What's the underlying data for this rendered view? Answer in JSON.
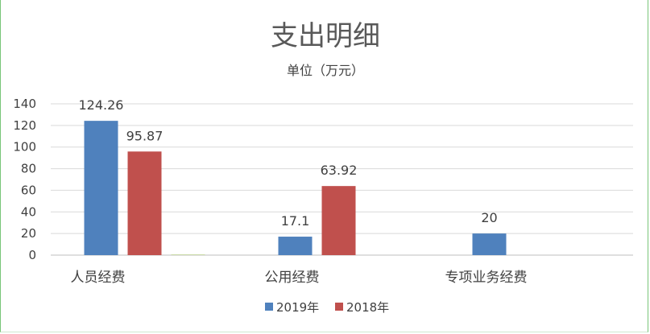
{
  "chart_data": {
    "type": "bar",
    "title": "支出明细",
    "subtitle": "单位（万元）",
    "categories": [
      "人员经费",
      "公用经费",
      "专项业务经费"
    ],
    "series": [
      {
        "name": "2019年",
        "values": [
          124.26,
          17.1,
          20
        ],
        "labels": [
          "124.26",
          "17.1",
          "20"
        ],
        "color": "#4f81bd"
      },
      {
        "name": "2018年",
        "values": [
          95.87,
          63.92,
          0
        ],
        "labels": [
          "95.87",
          "63.92",
          ""
        ],
        "color": "#c0504d"
      },
      {
        "name": "",
        "values": [
          0.4,
          0,
          0
        ],
        "labels": [
          "",
          "",
          ""
        ],
        "color": "#9bbb59"
      }
    ],
    "yticks": [
      "0",
      "20",
      "40",
      "60",
      "80",
      "100",
      "120",
      "140"
    ],
    "ylim": [
      0,
      140
    ],
    "grid": true,
    "legend": "bottom"
  }
}
